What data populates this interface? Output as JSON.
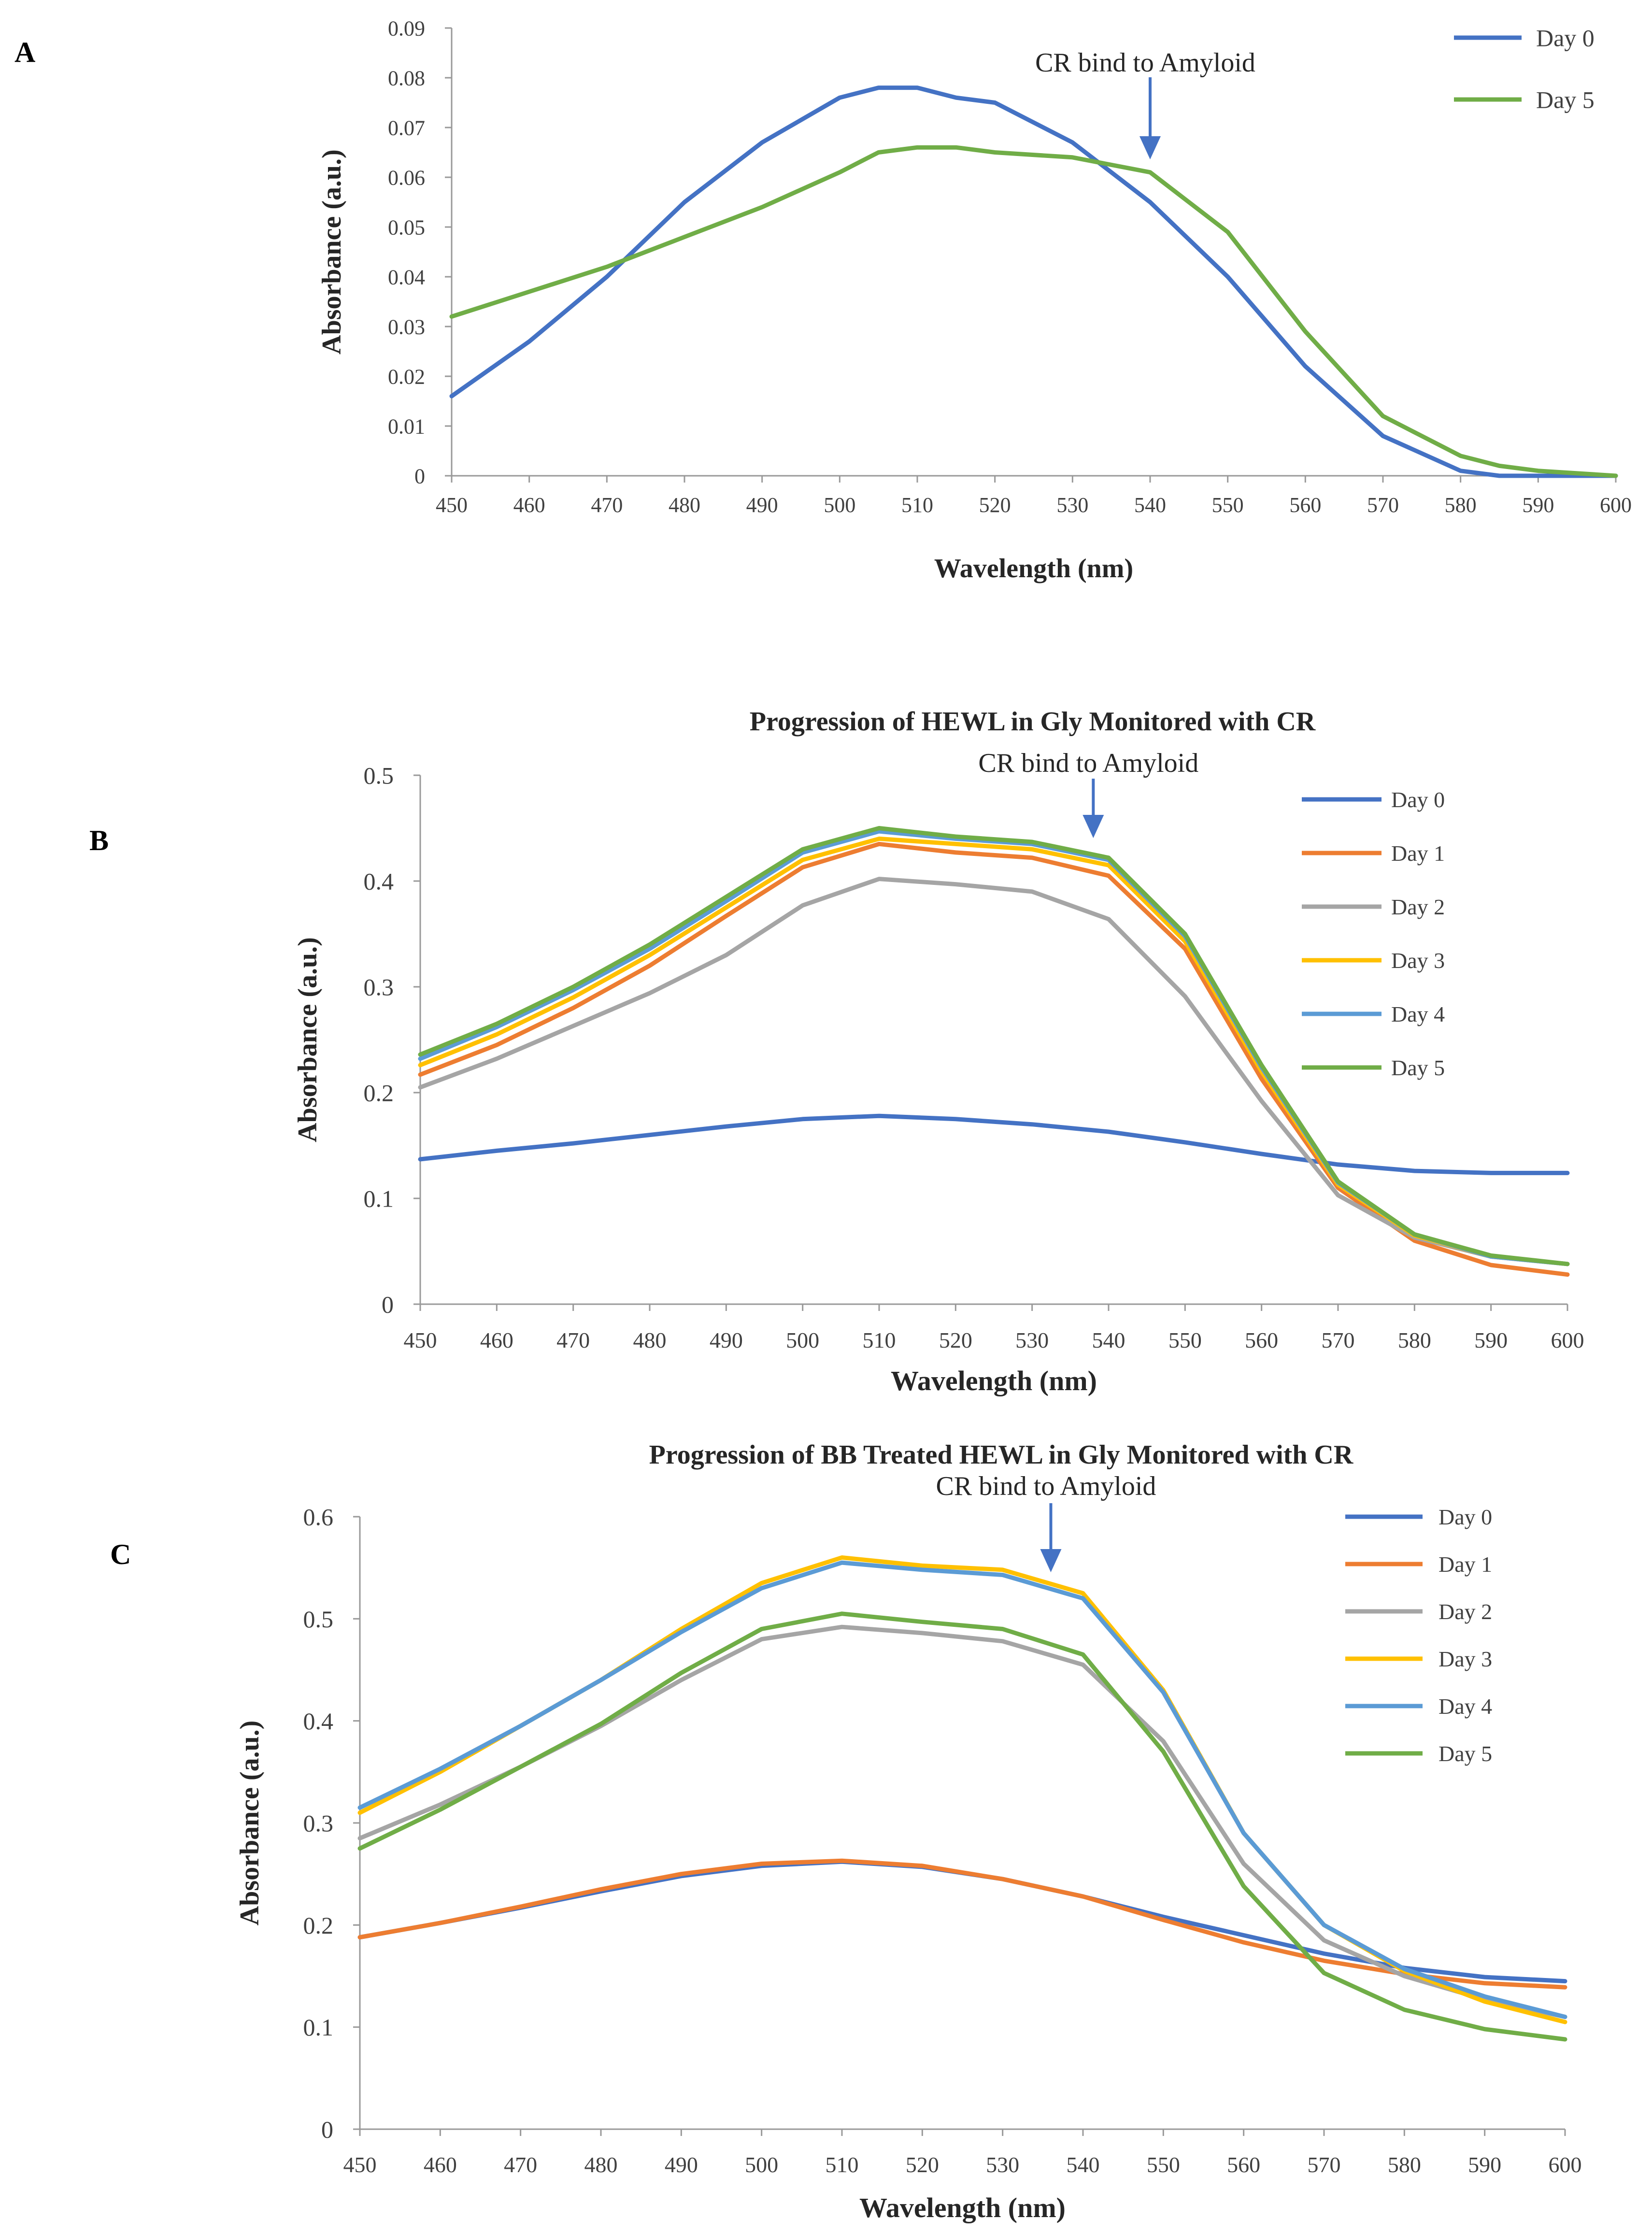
{
  "figure": {
    "annotation": "CR bind to Amyloid"
  },
  "colors": {
    "axis": "#999999",
    "text": "#404040",
    "arrow": "#4472c4",
    "day0": "#4472c4",
    "day1": "#ed7d31",
    "day2": "#a5a5a5",
    "day3": "#ffc000",
    "day4": "#5b9bd5",
    "day5": "#70ad47"
  },
  "chart_data": [
    {
      "panel": "A",
      "type": "line",
      "title": "",
      "annotation": "CR bind to Amyloid",
      "annotation_x": 540,
      "xlabel": "Wavelength (nm)",
      "ylabel": "Absorbance (a.u.)",
      "xlim": [
        450,
        600
      ],
      "ylim": [
        0,
        0.09
      ],
      "xticks": [
        "450",
        "460",
        "470",
        "480",
        "490",
        "500",
        "510",
        "520",
        "530",
        "540",
        "550",
        "560",
        "570",
        "580",
        "590",
        "600"
      ],
      "yticks": [
        "0",
        "0.01",
        "0.02",
        "0.03",
        "0.04",
        "0.05",
        "0.06",
        "0.07",
        "0.08",
        "0.09"
      ],
      "gridlines": false,
      "legend_position": "top-right",
      "x": [
        450,
        460,
        470,
        480,
        490,
        500,
        505,
        510,
        515,
        520,
        530,
        540,
        550,
        560,
        570,
        580,
        585,
        590,
        600
      ],
      "series": [
        {
          "name": "Day 0",
          "color_key": "day0",
          "values": [
            0.016,
            0.027,
            0.04,
            0.055,
            0.067,
            0.076,
            0.078,
            0.078,
            0.076,
            0.075,
            0.067,
            0.055,
            0.04,
            0.022,
            0.008,
            0.001,
            0,
            0,
            0
          ]
        },
        {
          "name": "Day 5",
          "color_key": "day5",
          "values": [
            0.032,
            0.037,
            0.042,
            0.048,
            0.054,
            0.061,
            0.065,
            0.066,
            0.066,
            0.065,
            0.064,
            0.061,
            0.049,
            0.029,
            0.012,
            0.004,
            0.002,
            0.001,
            0
          ]
        }
      ]
    },
    {
      "panel": "B",
      "type": "line",
      "title": "Progression of HEWL in Gly Monitored with CR",
      "annotation": "CR bind to Amyloid",
      "annotation_x": 538,
      "xlabel": "Wavelength (nm)",
      "ylabel": "Absorbance (a.u.)",
      "xlim": [
        450,
        600
      ],
      "ylim": [
        0,
        0.5
      ],
      "xticks": [
        "450",
        "460",
        "470",
        "480",
        "490",
        "500",
        "510",
        "520",
        "530",
        "540",
        "550",
        "560",
        "570",
        "580",
        "590",
        "600"
      ],
      "yticks": [
        "0",
        "0.1",
        "0.2",
        "0.3",
        "0.4",
        "0.5"
      ],
      "gridlines": false,
      "legend_position": "top-right",
      "x": [
        450,
        460,
        470,
        480,
        490,
        500,
        510,
        520,
        530,
        540,
        550,
        560,
        570,
        580,
        590,
        600
      ],
      "series": [
        {
          "name": "Day 0",
          "color_key": "day0",
          "values": [
            0.137,
            0.145,
            0.152,
            0.16,
            0.168,
            0.175,
            0.178,
            0.175,
            0.17,
            0.163,
            0.153,
            0.142,
            0.132,
            0.126,
            0.124,
            0.124
          ]
        },
        {
          "name": "Day 1",
          "color_key": "day1",
          "values": [
            0.217,
            0.245,
            0.28,
            0.32,
            0.367,
            0.413,
            0.435,
            0.427,
            0.422,
            0.405,
            0.336,
            0.213,
            0.11,
            0.06,
            0.037,
            0.028
          ]
        },
        {
          "name": "Day 2",
          "color_key": "day2",
          "values": [
            0.205,
            0.232,
            0.263,
            0.294,
            0.33,
            0.377,
            0.402,
            0.397,
            0.39,
            0.364,
            0.291,
            0.192,
            0.103,
            0.063,
            0.045,
            0.038
          ]
        },
        {
          "name": "Day 3",
          "color_key": "day3",
          "values": [
            0.226,
            0.255,
            0.29,
            0.33,
            0.375,
            0.42,
            0.44,
            0.435,
            0.43,
            0.415,
            0.343,
            0.22,
            0.113,
            0.065,
            0.045,
            0.038
          ]
        },
        {
          "name": "Day 4",
          "color_key": "day4",
          "values": [
            0.232,
            0.262,
            0.297,
            0.336,
            0.381,
            0.427,
            0.447,
            0.44,
            0.435,
            0.42,
            0.348,
            0.224,
            0.115,
            0.066,
            0.045,
            0.038
          ]
        },
        {
          "name": "Day 5",
          "color_key": "day5",
          "values": [
            0.236,
            0.265,
            0.3,
            0.34,
            0.385,
            0.43,
            0.45,
            0.442,
            0.437,
            0.422,
            0.35,
            0.226,
            0.116,
            0.066,
            0.046,
            0.038
          ]
        }
      ]
    },
    {
      "panel": "C",
      "type": "line",
      "title": "Progression of BB Treated HEWL in Gly Monitored with CR",
      "annotation": "CR bind to Amyloid",
      "annotation_x": 536,
      "xlabel": "Wavelength (nm)",
      "ylabel": "Absorbance (a.u.)",
      "xlim": [
        450,
        600
      ],
      "ylim": [
        0,
        0.6
      ],
      "xticks": [
        "450",
        "460",
        "470",
        "480",
        "490",
        "500",
        "510",
        "520",
        "530",
        "540",
        "550",
        "560",
        "570",
        "580",
        "590",
        "600"
      ],
      "yticks": [
        "0",
        "0.1",
        "0.2",
        "0.3",
        "0.4",
        "0.5",
        "0.6"
      ],
      "gridlines": false,
      "legend_position": "top-right",
      "x": [
        450,
        460,
        470,
        480,
        490,
        500,
        510,
        520,
        530,
        540,
        550,
        560,
        570,
        580,
        590,
        600
      ],
      "series": [
        {
          "name": "Day 0",
          "color_key": "day0",
          "values": [
            0.188,
            0.202,
            0.217,
            0.233,
            0.248,
            0.258,
            0.262,
            0.257,
            0.245,
            0.228,
            0.208,
            0.19,
            0.172,
            0.158,
            0.149,
            0.145
          ]
        },
        {
          "name": "Day 1",
          "color_key": "day1",
          "values": [
            0.188,
            0.202,
            0.218,
            0.235,
            0.25,
            0.26,
            0.263,
            0.258,
            0.245,
            0.228,
            0.205,
            0.183,
            0.165,
            0.152,
            0.143,
            0.139
          ]
        },
        {
          "name": "Day 2",
          "color_key": "day2",
          "values": [
            0.285,
            0.318,
            0.355,
            0.395,
            0.44,
            0.48,
            0.492,
            0.486,
            0.478,
            0.455,
            0.38,
            0.26,
            0.185,
            0.15,
            0.127,
            0.11
          ]
        },
        {
          "name": "Day 3",
          "color_key": "day3",
          "values": [
            0.31,
            0.35,
            0.395,
            0.44,
            0.49,
            0.535,
            0.56,
            0.552,
            0.548,
            0.525,
            0.43,
            0.29,
            0.2,
            0.155,
            0.125,
            0.105
          ]
        },
        {
          "name": "Day 4",
          "color_key": "day4",
          "values": [
            0.315,
            0.353,
            0.395,
            0.44,
            0.487,
            0.53,
            0.555,
            0.548,
            0.543,
            0.52,
            0.428,
            0.29,
            0.2,
            0.157,
            0.13,
            0.11
          ]
        },
        {
          "name": "Day 5",
          "color_key": "day5",
          "values": [
            0.275,
            0.313,
            0.355,
            0.397,
            0.447,
            0.49,
            0.505,
            0.497,
            0.49,
            0.465,
            0.37,
            0.238,
            0.153,
            0.117,
            0.098,
            0.088
          ]
        }
      ]
    }
  ]
}
